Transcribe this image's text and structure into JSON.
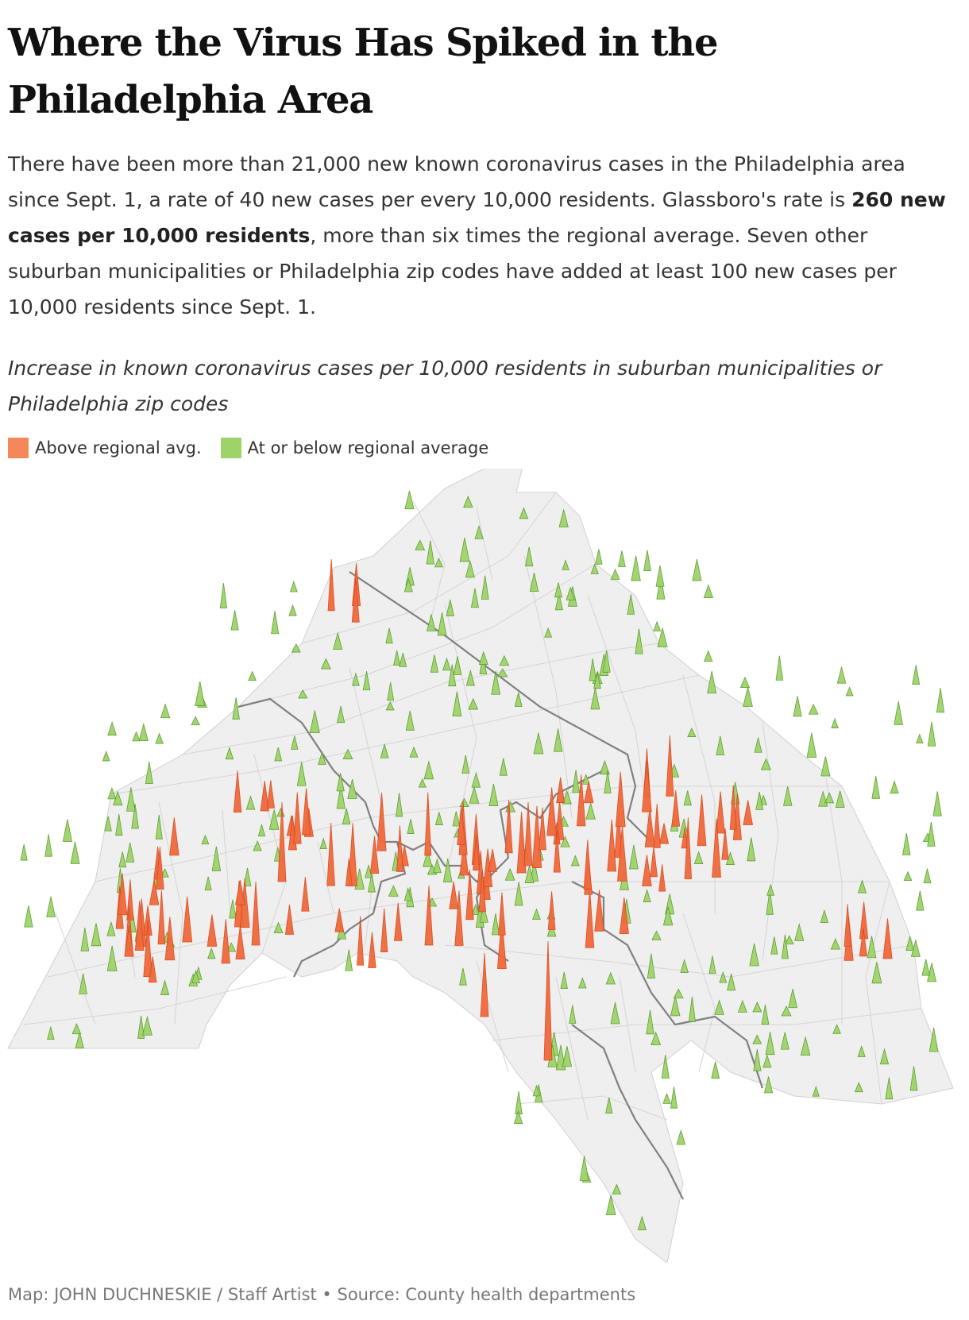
{
  "title": "Where the Virus Has Spiked in the Philadelphia Area",
  "dek": {
    "part1": "There have been more than 21,000 new known coronavirus cases in the Philadelphia area since Sept. 1, a rate of 40 new cases per every 10,000 residents. Glassboro's rate is ",
    "bold": "260 new cases per 10,000 residents",
    "part2": ", more than six times the regional average. Seven other suburban municipalities or Philadelphia zip codes have added at least 100 new cases per 10,000 residents since Sept. 1."
  },
  "subtitle": "Increase in known coronavirus cases per 10,000 residents in suburban municipalities or Philadelphia zip codes",
  "legend": [
    {
      "label": "Above regional avg.",
      "color": "#f5875a"
    },
    {
      "label": "At or below regional average",
      "color": "#9ed36a"
    }
  ],
  "colors": {
    "above_fill": "#f06a3c",
    "above_stroke": "#d9481c",
    "below_fill": "#9ed36a",
    "below_stroke": "#5a9a2e",
    "land": "#efefef",
    "border": "#cfcfcf",
    "county_line": "#7a7a7a"
  },
  "map": {
    "regional_average_per_10k": 40
  },
  "credit": "Map: JOHN DUCHNESKIE / Staff Artist • Source: County health departments"
}
